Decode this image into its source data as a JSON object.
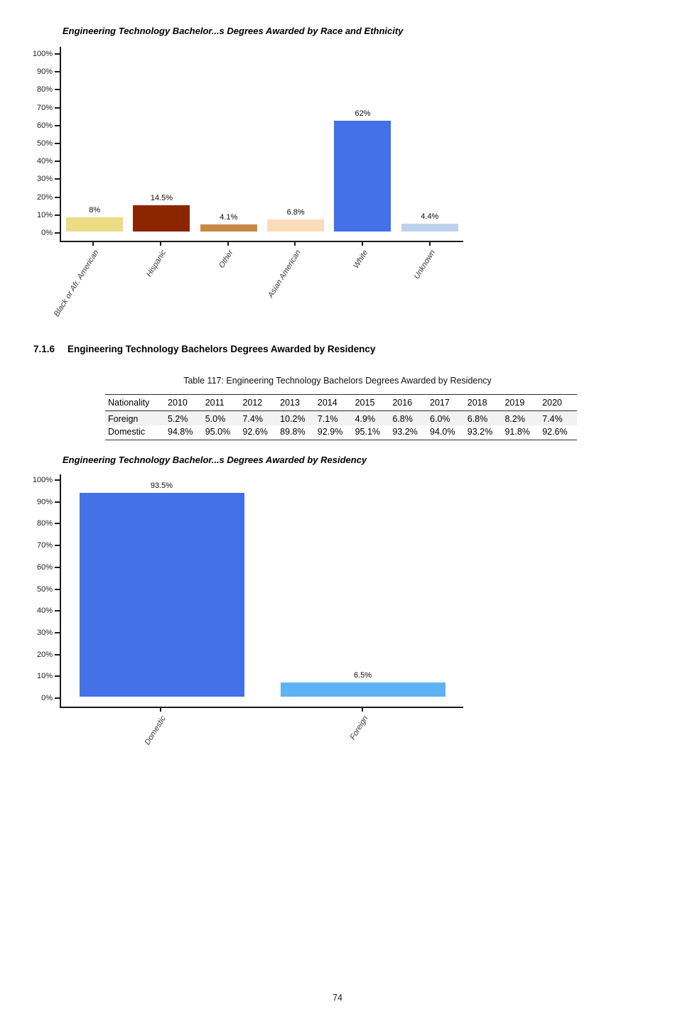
{
  "page": {
    "number": "74"
  },
  "section": {
    "number": "7.1.6",
    "title": "Engineering Technology Bachelors Degrees Awarded by Residency"
  },
  "table": {
    "caption": "Table 117: Engineering Technology Bachelors Degrees Awarded by Residency",
    "columns": [
      "Nationality",
      "2010",
      "2011",
      "2012",
      "2013",
      "2014",
      "2015",
      "2016",
      "2017",
      "2018",
      "2019",
      "2020"
    ],
    "rows": [
      {
        "label": "Foreign",
        "values": [
          "5.2%",
          "5.0%",
          "7.4%",
          "10.2%",
          "7.1%",
          "4.9%",
          "6.8%",
          "6.0%",
          "6.8%",
          "8.2%",
          "7.4%"
        ],
        "shaded": true
      },
      {
        "label": "Domestic",
        "values": [
          "94.8%",
          "95.0%",
          "92.6%",
          "89.8%",
          "92.9%",
          "95.1%",
          "93.2%",
          "94.0%",
          "93.2%",
          "91.8%",
          "92.6%"
        ],
        "shaded": false
      }
    ]
  },
  "chart_data": [
    {
      "type": "bar",
      "title": "Engineering Technology Bachelor...s Degrees Awarded by Race and Ethnicity",
      "categories": [
        "Black or Afr. American",
        "Hispanic",
        "Other",
        "Asian American",
        "White",
        "Unknown"
      ],
      "values": [
        8,
        14.5,
        4.1,
        6.8,
        62,
        4.4
      ],
      "value_labels": [
        "8%",
        "14.5%",
        "4.1%",
        "6.8%",
        "62%",
        "4.4%"
      ],
      "bar_colors": [
        "#EBDC85",
        "#8B2500",
        "#C98843",
        "#FBDCBA",
        "#4470E8",
        "#BCD2EA"
      ],
      "xlabel": "",
      "ylabel": "",
      "ylim": [
        0,
        100
      ],
      "y_ticks": [
        "0%",
        "10%",
        "20%",
        "30%",
        "40%",
        "50%",
        "60%",
        "70%",
        "80%",
        "90%",
        "100%"
      ],
      "grid": false,
      "legend": "none"
    },
    {
      "type": "bar",
      "title": "Engineering Technology Bachelor...s Degrees Awarded by Residency",
      "categories": [
        "Domestic",
        "Foreign"
      ],
      "values": [
        93.5,
        6.5
      ],
      "value_labels": [
        "93.5%",
        "6.5%"
      ],
      "bar_colors": [
        "#4470E8",
        "#60B2F7"
      ],
      "xlabel": "",
      "ylabel": "",
      "ylim": [
        0,
        100
      ],
      "y_ticks": [
        "0%",
        "10%",
        "20%",
        "30%",
        "40%",
        "50%",
        "60%",
        "70%",
        "80%",
        "90%",
        "100%"
      ],
      "grid": false,
      "legend": "none"
    }
  ]
}
